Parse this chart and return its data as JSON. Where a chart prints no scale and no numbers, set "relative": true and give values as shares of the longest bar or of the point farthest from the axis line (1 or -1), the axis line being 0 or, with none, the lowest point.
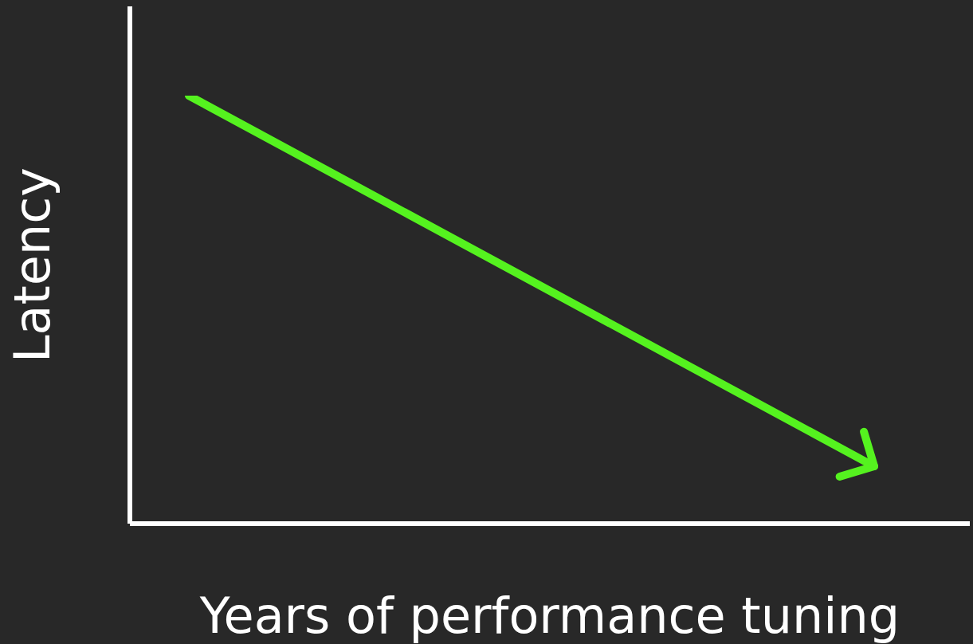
{
  "chart_data": {
    "type": "line",
    "relative": true,
    "xlabel": "Years of performance tuning",
    "ylabel": "Latency",
    "categories": [
      null,
      null
    ],
    "series": [
      {
        "color": "#55f21f",
        "values": [
          1,
          0.134
        ]
      }
    ],
    "grid": false,
    "legend": false,
    "marker": "none",
    "line_style": "solid"
  }
}
